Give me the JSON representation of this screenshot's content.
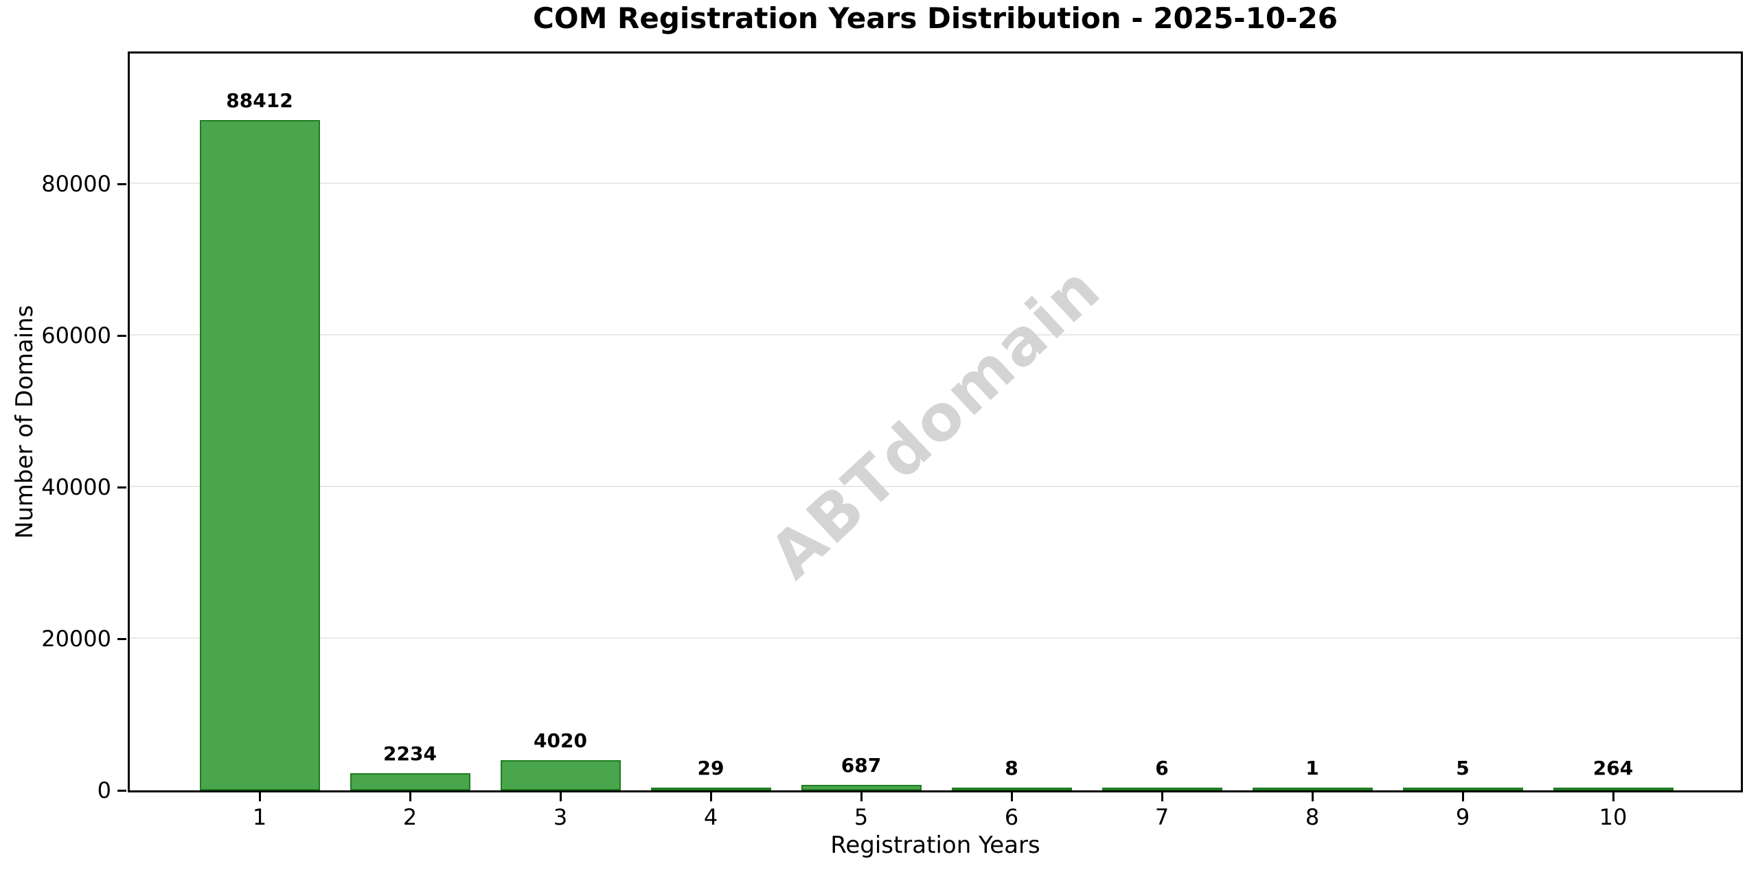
{
  "figure": {
    "title": "COM Registration Years Distribution - 2025-10-26",
    "watermark": "ABTdomain"
  },
  "chart_data": {
    "type": "bar",
    "title": "COM Registration Years Distribution - 2025-10-26",
    "categories": [
      "1",
      "2",
      "3",
      "4",
      "5",
      "6",
      "7",
      "8",
      "9",
      "10"
    ],
    "values": [
      88412,
      2234,
      4020,
      29,
      687,
      8,
      6,
      1,
      5,
      264
    ],
    "bar_value_labels": [
      "88412",
      "2234",
      "4020",
      "29",
      "687",
      "8",
      "6",
      "1",
      "5",
      "264"
    ],
    "xlabel": "Registration Years",
    "ylabel": "Number of Domains",
    "ylim": [
      0,
      97200
    ],
    "yticks": [
      0,
      20000,
      40000,
      60000,
      80000
    ],
    "ytick_labels": [
      "0",
      "20000",
      "40000",
      "60000",
      "80000"
    ],
    "grid": "horizontal",
    "legend": "none",
    "watermark": "ABTdomain",
    "colors": {
      "bar_fill": "#4aa64d",
      "bar_edge": "#1e7b21",
      "grid_line": "#e8e8e8",
      "watermark": "#d4d4d4",
      "text": "#000000",
      "background": "#ffffff"
    }
  }
}
